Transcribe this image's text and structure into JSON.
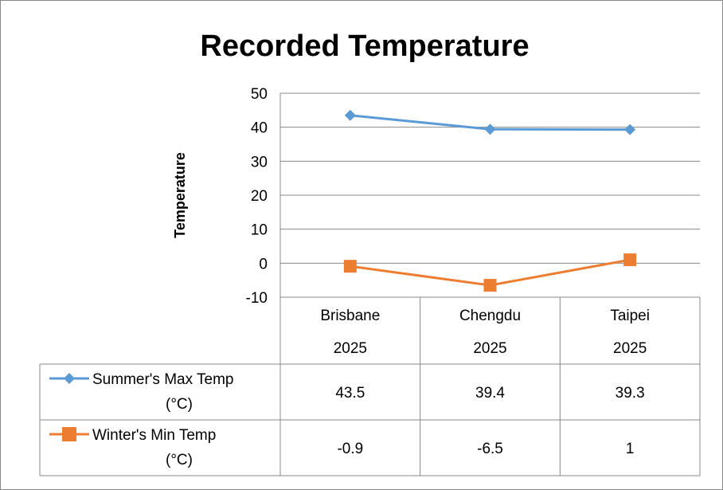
{
  "chart_data": {
    "type": "line",
    "title": "Recorded Temperature",
    "ylabel": "Temperature",
    "xlabel": "",
    "ylim": [
      -10,
      50
    ],
    "yticks": [
      50,
      40,
      30,
      20,
      10,
      0,
      -10
    ],
    "grid": true,
    "legend": "data-table",
    "categories": [
      "Brisbane",
      "Chengdu",
      "Taipei"
    ],
    "category_years": [
      "2025",
      "2025",
      "2025"
    ],
    "series": [
      {
        "name": "Summer's Max Temp (°C)",
        "name_lines": [
          "Summer's Max Temp",
          "(°C)"
        ],
        "values": [
          43.5,
          39.4,
          39.3
        ],
        "labels": [
          "43.5",
          "39.4",
          "39.3"
        ],
        "color": "#5b9bd5",
        "marker": "diamond"
      },
      {
        "name": "Winter's Min Temp (°C)",
        "name_lines": [
          "Winter's Min Temp",
          "(°C)"
        ],
        "values": [
          -0.9,
          -6.5,
          1
        ],
        "labels": [
          "-0.9",
          "-6.5",
          "1"
        ],
        "color": "#ed7d31",
        "marker": "square"
      }
    ]
  }
}
